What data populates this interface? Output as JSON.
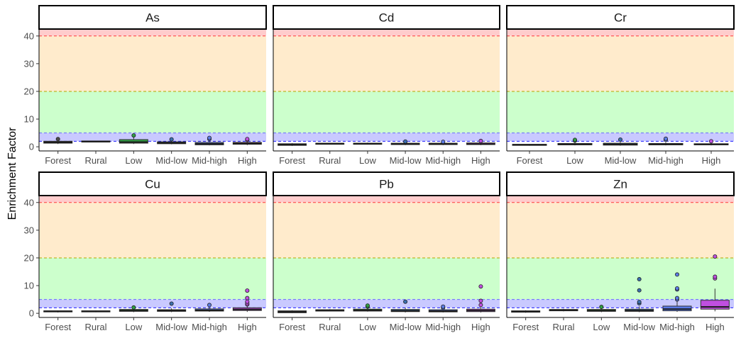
{
  "chart_data": {
    "type": "boxplot",
    "ylabel": "Enrichment Factor",
    "xlabel": "",
    "ylim": [
      -1.5,
      42.5
    ],
    "yticks": [
      0,
      10,
      20,
      30,
      40
    ],
    "grid": false,
    "thresholds": [
      {
        "y": 2,
        "line_color": "#1f1fff"
      },
      {
        "y": 5,
        "line_color": "#6a6aff"
      },
      {
        "y": 20,
        "line_color": "#b5a300"
      },
      {
        "y": 40,
        "line_color": "#ff3b3b"
      }
    ],
    "bands": [
      {
        "from": 2,
        "to": 5,
        "color": "#c9c9ff"
      },
      {
        "from": 5,
        "to": 20,
        "color": "#ccffcc"
      },
      {
        "from": 20,
        "to": 40,
        "color": "#ffebcc"
      },
      {
        "from": 40,
        "to": 42.5,
        "color": "#ffcccc"
      }
    ],
    "palette": {
      "Forest": "#4a4a4a",
      "Rural": "#3b3b8a",
      "Low": "#2f9e44",
      "Mid-low": "#3b6fb0",
      "Mid-high": "#5b7be6",
      "High": "#c04fe0"
    },
    "panels": [
      {
        "title": "As",
        "categories": [
          "Forest",
          "Rural",
          "Low",
          "Mid-low",
          "Mid-high",
          "High"
        ],
        "boxes": [
          {
            "q1": 1.3,
            "median": 1.6,
            "q3": 2.0,
            "min": 1.0,
            "max": 2.3,
            "outliers": [
              2.8
            ]
          },
          {
            "q1": 1.7,
            "median": 1.9,
            "q3": 2.1,
            "min": 1.6,
            "max": 2.2,
            "outliers": []
          },
          {
            "q1": 1.3,
            "median": 1.7,
            "q3": 2.6,
            "min": 1.0,
            "max": 3.6,
            "outliers": [
              4.1
            ]
          },
          {
            "q1": 1.1,
            "median": 1.4,
            "q3": 1.8,
            "min": 0.9,
            "max": 2.2,
            "outliers": [
              2.7
            ]
          },
          {
            "q1": 0.7,
            "median": 1.1,
            "q3": 1.6,
            "min": 0.5,
            "max": 2.3,
            "outliers": [
              2.8,
              3.2
            ]
          },
          {
            "q1": 0.9,
            "median": 1.2,
            "q3": 1.6,
            "min": 0.6,
            "max": 2.1,
            "outliers": [
              2.5,
              2.8
            ]
          }
        ]
      },
      {
        "title": "Cd",
        "categories": [
          "Forest",
          "Rural",
          "Low",
          "Mid-low",
          "Mid-high",
          "High"
        ],
        "boxes": [
          {
            "q1": 0.5,
            "median": 0.8,
            "q3": 1.1,
            "min": 0.3,
            "max": 1.3,
            "outliers": []
          },
          {
            "q1": 0.9,
            "median": 1.1,
            "q3": 1.3,
            "min": 0.8,
            "max": 1.4,
            "outliers": []
          },
          {
            "q1": 0.9,
            "median": 1.1,
            "q3": 1.3,
            "min": 0.8,
            "max": 1.5,
            "outliers": []
          },
          {
            "q1": 0.8,
            "median": 1.0,
            "q3": 1.3,
            "min": 0.6,
            "max": 1.6,
            "outliers": [
              1.9
            ]
          },
          {
            "q1": 0.8,
            "median": 1.0,
            "q3": 1.3,
            "min": 0.6,
            "max": 1.6,
            "outliers": [
              1.8
            ]
          },
          {
            "q1": 0.8,
            "median": 1.0,
            "q3": 1.4,
            "min": 0.6,
            "max": 1.8,
            "outliers": [
              2.1
            ]
          }
        ]
      },
      {
        "title": "Cr",
        "categories": [
          "Forest",
          "Low",
          "Mid-low",
          "Mid-high",
          "High"
        ],
        "boxes": [
          {
            "q1": 0.5,
            "median": 0.7,
            "q3": 0.9,
            "min": 0.4,
            "max": 1.0,
            "outliers": []
          },
          {
            "q1": 0.7,
            "median": 0.9,
            "q3": 1.2,
            "min": 0.5,
            "max": 1.6,
            "outliers": [
              2.2,
              2.5
            ]
          },
          {
            "q1": 0.6,
            "median": 0.9,
            "q3": 1.3,
            "min": 0.4,
            "max": 1.8,
            "outliers": [
              2.6
            ]
          },
          {
            "q1": 0.7,
            "median": 0.9,
            "q3": 1.2,
            "min": 0.5,
            "max": 1.6,
            "outliers": [
              2.5,
              2.9
            ]
          },
          {
            "q1": 0.7,
            "median": 0.9,
            "q3": 1.1,
            "min": 0.5,
            "max": 1.4,
            "outliers": [
              2.0
            ]
          }
        ]
      },
      {
        "title": "Cu",
        "categories": [
          "Forest",
          "Rural",
          "Low",
          "Mid-low",
          "Mid-high",
          "High"
        ],
        "boxes": [
          {
            "q1": 0.5,
            "median": 0.7,
            "q3": 0.9,
            "min": 0.3,
            "max": 1.0,
            "outliers": []
          },
          {
            "q1": 0.5,
            "median": 0.7,
            "q3": 0.9,
            "min": 0.4,
            "max": 1.0,
            "outliers": []
          },
          {
            "q1": 0.7,
            "median": 1.0,
            "q3": 1.4,
            "min": 0.4,
            "max": 1.8,
            "outliers": [
              2.1
            ]
          },
          {
            "q1": 0.7,
            "median": 1.0,
            "q3": 1.3,
            "min": 0.4,
            "max": 1.8,
            "outliers": [
              3.5
            ]
          },
          {
            "q1": 0.8,
            "median": 1.1,
            "q3": 1.6,
            "min": 0.5,
            "max": 2.2,
            "outliers": [
              3.0
            ]
          },
          {
            "q1": 1.0,
            "median": 1.4,
            "q3": 2.0,
            "min": 0.5,
            "max": 2.8,
            "outliers": [
              3.2,
              3.6,
              4.2,
              5.5,
              8.2
            ]
          }
        ]
      },
      {
        "title": "Pb",
        "categories": [
          "Forest",
          "Rural",
          "Low",
          "Mid-low",
          "Mid-high",
          "High"
        ],
        "boxes": [
          {
            "q1": 0.2,
            "median": 0.5,
            "q3": 0.9,
            "min": 0.1,
            "max": 1.1,
            "outliers": []
          },
          {
            "q1": 0.8,
            "median": 1.0,
            "q3": 1.3,
            "min": 0.7,
            "max": 1.5,
            "outliers": []
          },
          {
            "q1": 0.8,
            "median": 1.1,
            "q3": 1.5,
            "min": 0.6,
            "max": 2.0,
            "outliers": [
              2.4,
              2.8
            ]
          },
          {
            "q1": 0.6,
            "median": 0.9,
            "q3": 1.4,
            "min": 0.3,
            "max": 2.0,
            "outliers": [
              4.2
            ]
          },
          {
            "q1": 0.5,
            "median": 0.8,
            "q3": 1.3,
            "min": 0.3,
            "max": 1.8,
            "outliers": [
              2.0,
              2.4
            ]
          },
          {
            "q1": 0.6,
            "median": 1.0,
            "q3": 1.5,
            "min": 0.3,
            "max": 2.5,
            "outliers": [
              3.0,
              4.5,
              9.7
            ]
          }
        ]
      },
      {
        "title": "Zn",
        "categories": [
          "Forest",
          "Rural",
          "Low",
          "Mid-low",
          "Mid-high",
          "High"
        ],
        "boxes": [
          {
            "q1": 0.4,
            "median": 0.6,
            "q3": 0.9,
            "min": 0.2,
            "max": 1.1,
            "outliers": []
          },
          {
            "q1": 0.9,
            "median": 1.1,
            "q3": 1.4,
            "min": 0.7,
            "max": 1.6,
            "outliers": []
          },
          {
            "q1": 0.7,
            "median": 1.0,
            "q3": 1.4,
            "min": 0.4,
            "max": 1.9,
            "outliers": [
              2.3
            ]
          },
          {
            "q1": 0.7,
            "median": 1.0,
            "q3": 1.5,
            "min": 0.4,
            "max": 2.5,
            "outliers": [
              3.6,
              4.1,
              8.3,
              12.3
            ]
          },
          {
            "q1": 0.9,
            "median": 1.5,
            "q3": 2.6,
            "min": 0.5,
            "max": 4.6,
            "outliers": [
              5.0,
              5.5,
              8.6,
              9.0,
              14.0
            ]
          },
          {
            "q1": 1.5,
            "median": 2.3,
            "q3": 4.7,
            "min": 0.7,
            "max": 8.9,
            "outliers": [
              12.6,
              13.2,
              20.5
            ]
          }
        ]
      }
    ]
  }
}
